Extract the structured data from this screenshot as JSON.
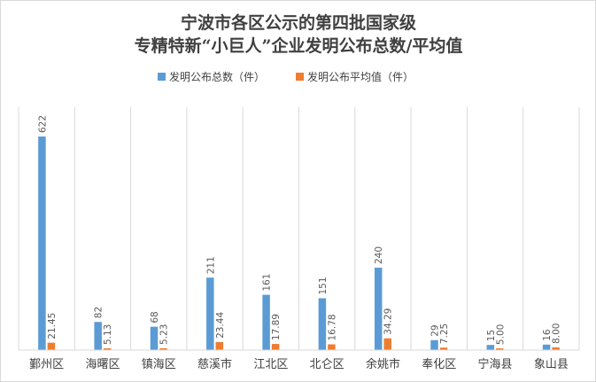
{
  "chart_data": {
    "type": "bar",
    "title_lines": [
      "宁波市各区公示的第四批国家级",
      "专精特新“小巨人”企业发明公布总数/平均值"
    ],
    "categories": [
      "鄞州区",
      "海曙区",
      "镇海区",
      "慈溪市",
      "江北区",
      "北仑区",
      "余姚市",
      "奉化区",
      "宁海县",
      "象山县"
    ],
    "series": [
      {
        "name": "发明公布总数（件）",
        "color": "#5b9bd5",
        "values": [
          622,
          82,
          68,
          211,
          161,
          151,
          240,
          29,
          15,
          16
        ],
        "labels": [
          "622",
          "82",
          "68",
          "211",
          "161",
          "151",
          "240",
          "29",
          "15",
          "16"
        ]
      },
      {
        "name": "发明公布平均值（件）",
        "color": "#ed7d31",
        "values": [
          21.45,
          5.13,
          5.23,
          23.44,
          17.89,
          16.78,
          34.29,
          7.25,
          5.0,
          8.0
        ],
        "labels": [
          "21.45",
          "5.13",
          "5.23",
          "23.44",
          "17.89",
          "16.78",
          "34.29",
          "7.25",
          "5.00",
          "8.00"
        ]
      }
    ],
    "ylim": [
      0,
      700
    ],
    "y_axis_visible": false,
    "grid": "vertical category separators",
    "legend_position": "top",
    "data_labels": "rotated vertical above bars"
  }
}
